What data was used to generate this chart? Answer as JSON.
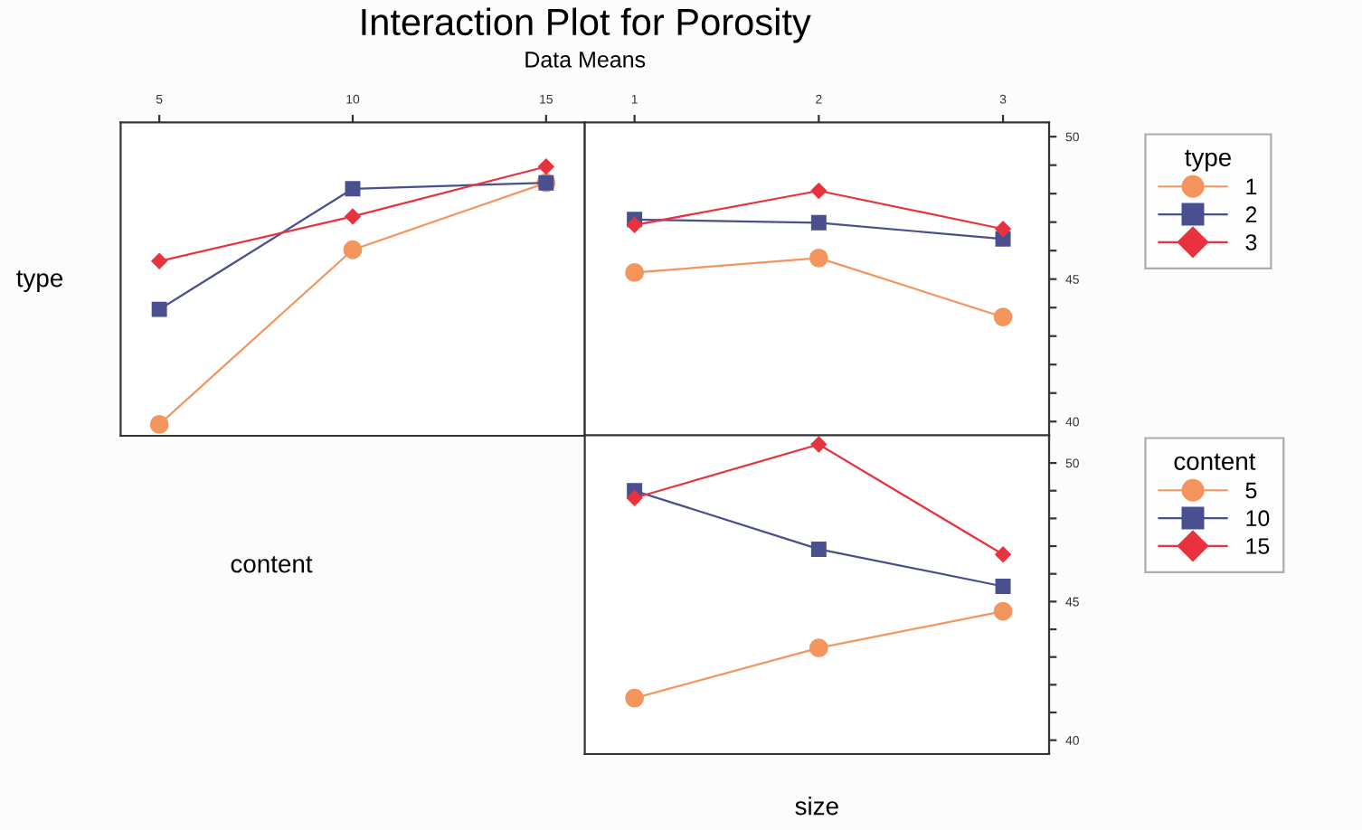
{
  "chart_data": [
    {
      "type": "line",
      "title": "Interaction Plot for Porosity",
      "subtitle": "Data Means",
      "ylabel": "type",
      "xlabel": "content",
      "x": [
        5,
        10,
        15
      ],
      "xlim": [
        4,
        16
      ],
      "xticks": [
        5,
        10,
        15
      ],
      "ylim": [
        39.5,
        50.5
      ],
      "tick_labels": "x",
      "grid": false,
      "legend": false,
      "series": [
        {
          "color": "#f4955e",
          "marker": "circle",
          "values": [
            39.9,
            46.03,
            48.38
          ]
        },
        {
          "color": "#4a4f8f",
          "marker": "square",
          "values": [
            43.94,
            48.17,
            48.38
          ]
        },
        {
          "color": "#e8333f",
          "marker": "diamond",
          "values": [
            45.63,
            47.2,
            48.95
          ]
        }
      ]
    },
    {
      "type": "line",
      "x": [
        1,
        2,
        3
      ],
      "xlim": [
        0.73,
        3.25
      ],
      "xticks": [
        1,
        2,
        3
      ],
      "ylim": [
        39.5,
        50.5
      ],
      "yticks": [
        40,
        {
          "value": 41,
          "label": null
        },
        {
          "value": 42,
          "label": null
        },
        {
          "value": 43,
          "label": null
        },
        {
          "value": 44,
          "label": null
        },
        45,
        {
          "value": 46,
          "label": null
        },
        {
          "value": 47,
          "label": null
        },
        {
          "value": 48,
          "label": null
        },
        {
          "value": 49,
          "label": null
        },
        50
      ],
      "grid": false,
      "legend": "right",
      "legend_title": "type",
      "series": [
        {
          "name": "1",
          "color": "#f4955e",
          "marker": "circle",
          "values": [
            45.23,
            45.74,
            43.67
          ]
        },
        {
          "name": "2",
          "color": "#4a4f8f",
          "marker": "square",
          "values": [
            47.09,
            46.98,
            46.41
          ]
        },
        {
          "name": "3",
          "color": "#e8333f",
          "marker": "diamond",
          "values": [
            46.9,
            48.1,
            46.76
          ]
        }
      ]
    },
    {
      "type": "line",
      "xlabel": "size",
      "x": [
        1,
        2,
        3
      ],
      "xlim": [
        0.73,
        3.25
      ],
      "ylim": [
        39.5,
        51
      ],
      "yticks": [
        40,
        {
          "value": 41,
          "label": null
        },
        {
          "value": 42,
          "label": null
        },
        {
          "value": 43,
          "label": null
        },
        {
          "value": 44,
          "label": null
        },
        45,
        {
          "value": 46,
          "label": null
        },
        {
          "value": 47,
          "label": null
        },
        {
          "value": 48,
          "label": null
        },
        {
          "value": 49,
          "label": null
        },
        50
      ],
      "tick_labels": "y",
      "grid": false,
      "legend": "right",
      "legend_title": "content",
      "series": [
        {
          "name": "5",
          "color": "#f4955e",
          "marker": "circle",
          "values": [
            41.52,
            43.33,
            44.65
          ]
        },
        {
          "name": "10",
          "color": "#4a4f8f",
          "marker": "square",
          "values": [
            49.0,
            46.89,
            45.55
          ]
        },
        {
          "name": "15",
          "color": "#e8333f",
          "marker": "diamond",
          "values": [
            48.74,
            50.67,
            46.7
          ]
        }
      ]
    }
  ]
}
